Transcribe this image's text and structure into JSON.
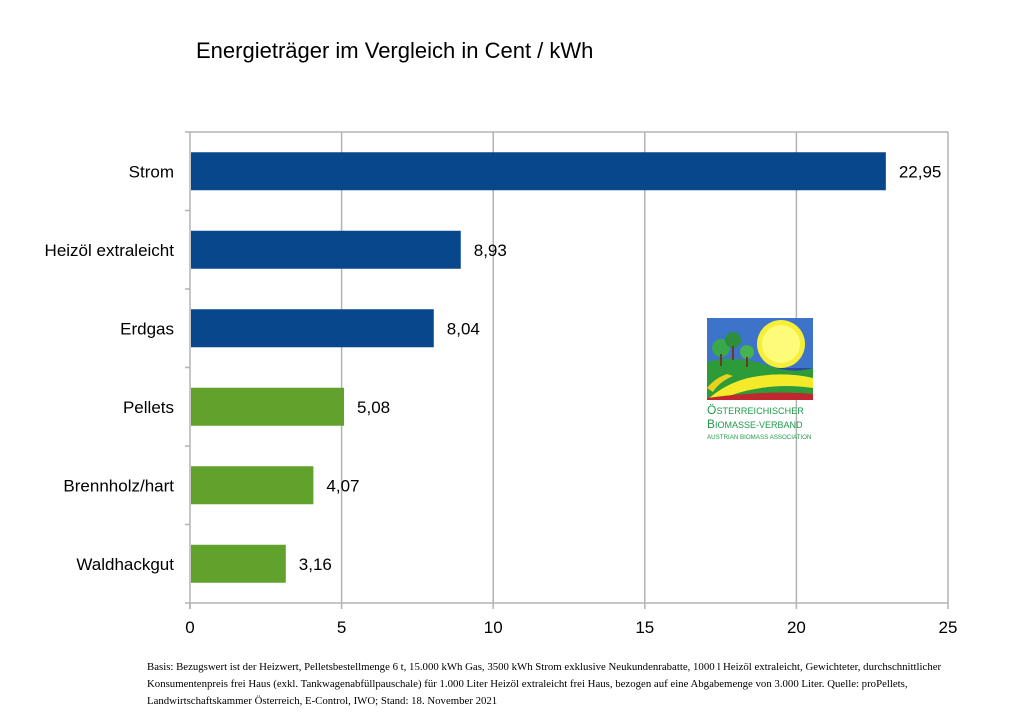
{
  "chart_data": {
    "type": "bar",
    "orientation": "horizontal",
    "title": "Energieträger im Vergleich in Cent / kWh",
    "categories": [
      "Strom",
      "Heizöl extraleicht",
      "Erdgas",
      "Pellets",
      "Brennholz/hart",
      "Waldhackgut"
    ],
    "values": [
      22.95,
      8.93,
      8.04,
      5.08,
      4.07,
      3.16
    ],
    "value_labels": [
      "22,95",
      "8,93",
      "8,04",
      "5,08",
      "4,07",
      "3,16"
    ],
    "bar_colors": [
      "#08478b",
      "#08478b",
      "#08478b",
      "#60a22b",
      "#60a22b",
      "#60a22b"
    ],
    "xlim": [
      0,
      25
    ],
    "xticks": [
      0,
      5,
      10,
      15,
      20,
      25
    ],
    "xtick_labels": [
      "0",
      "5",
      "10",
      "15",
      "20",
      "25"
    ],
    "xlabel": "",
    "ylabel": "",
    "grid": "vertical",
    "gridline_color": "#b3b3b3"
  },
  "logo": {
    "line1": "Österreichischer",
    "line2": "Biomasse-Verband",
    "line3": "Austrian Biomass Association"
  },
  "footnote": "Basis: Bezugswert ist der Heizwert, Pelletsbestellmenge 6 t, 15.000 kWh Gas, 3500 kWh Strom exklusive Neukundenrabatte, 1000 l Heizöl extraleicht, Gewichteter, durchschnittlicher Konsumentenpreis frei Haus (exkl. Tankwagenabfüllpauschale) für 1.000 Liter Heizöl extraleicht frei Haus, bezogen auf eine Abgabemenge von 3.000 Liter. Quelle: proPellets, Landwirtschaftskammer Österreich, E-Control, IWO; Stand: 18. November 2021"
}
